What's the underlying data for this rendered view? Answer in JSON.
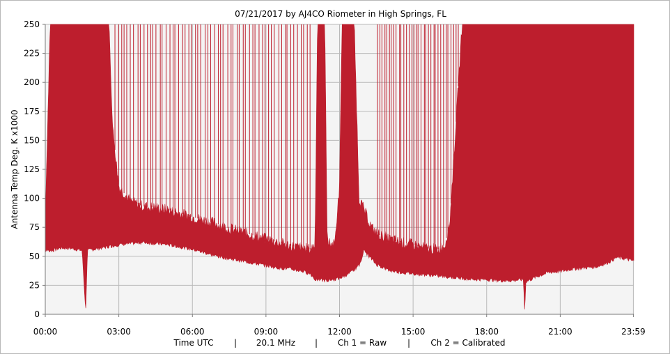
{
  "chart_data": {
    "type": "area",
    "title": "07/21/2017  by  AJ4CO Riometer  in  High Springs, FL",
    "ylabel": "Antenna Temp Deg. K x1000",
    "xlim": [
      0,
      24
    ],
    "ylim": [
      0,
      250
    ],
    "y_ticks": [
      0,
      25,
      50,
      75,
      100,
      125,
      150,
      175,
      200,
      225,
      250
    ],
    "x_ticks": [
      {
        "t": 0,
        "label": "00:00"
      },
      {
        "t": 3,
        "label": "03:00"
      },
      {
        "t": 6,
        "label": "06:00"
      },
      {
        "t": 9,
        "label": "09:00"
      },
      {
        "t": 12,
        "label": "12:00"
      },
      {
        "t": 15,
        "label": "15:00"
      },
      {
        "t": 18,
        "label": "18:00"
      },
      {
        "t": 21,
        "label": "21:00"
      },
      {
        "t": 23.983,
        "label": "23:59"
      }
    ],
    "grid": true,
    "fill_color": "#bd1e2d",
    "background_color": "#f4f4f4",
    "grid_color": "#b9b9b9",
    "series": [
      {
        "lower_envelope": [
          [
            0,
            55
          ],
          [
            0.3,
            55
          ],
          [
            0.6,
            57
          ],
          [
            1.0,
            57
          ],
          [
            1.5,
            55
          ],
          [
            1.65,
            2
          ],
          [
            1.72,
            55
          ],
          [
            2.0,
            56
          ],
          [
            2.5,
            58
          ],
          [
            3.0,
            60
          ],
          [
            3.5,
            61
          ],
          [
            4.0,
            62
          ],
          [
            4.5,
            61
          ],
          [
            5.0,
            60
          ],
          [
            5.5,
            58
          ],
          [
            6.0,
            56
          ],
          [
            6.5,
            53
          ],
          [
            7.0,
            50
          ],
          [
            7.5,
            48
          ],
          [
            8.0,
            46
          ],
          [
            8.5,
            44
          ],
          [
            9.0,
            42
          ],
          [
            9.5,
            40
          ],
          [
            10.0,
            39
          ],
          [
            10.5,
            37
          ],
          [
            10.8,
            35
          ],
          [
            11.0,
            30
          ],
          [
            11.5,
            29
          ],
          [
            12.0,
            31
          ],
          [
            12.4,
            35
          ],
          [
            12.8,
            42
          ],
          [
            13.0,
            55
          ],
          [
            13.2,
            50
          ],
          [
            13.5,
            43
          ],
          [
            14.0,
            38
          ],
          [
            14.5,
            36
          ],
          [
            15.0,
            35
          ],
          [
            15.5,
            34
          ],
          [
            16.0,
            33
          ],
          [
            16.5,
            32
          ],
          [
            17.0,
            31
          ],
          [
            17.5,
            30
          ],
          [
            18.0,
            30
          ],
          [
            18.5,
            29
          ],
          [
            19.0,
            29
          ],
          [
            19.5,
            30
          ],
          [
            19.55,
            2
          ],
          [
            19.6,
            28
          ],
          [
            20.0,
            32
          ],
          [
            20.5,
            36
          ],
          [
            21.0,
            37
          ],
          [
            21.5,
            39
          ],
          [
            22.0,
            40
          ],
          [
            22.5,
            41
          ],
          [
            23.0,
            45
          ],
          [
            23.3,
            49
          ],
          [
            23.6,
            48
          ],
          [
            23.983,
            46
          ]
        ],
        "upper_envelope": [
          [
            0,
            85
          ],
          [
            0.2,
            250
          ],
          [
            2.6,
            250
          ],
          [
            2.75,
            160
          ],
          [
            3.0,
            110
          ],
          [
            3.5,
            97
          ],
          [
            4.0,
            93
          ],
          [
            4.5,
            92
          ],
          [
            5.0,
            90
          ],
          [
            5.5,
            87
          ],
          [
            6.0,
            84
          ],
          [
            6.5,
            81
          ],
          [
            7.0,
            78
          ],
          [
            7.5,
            74
          ],
          [
            8.0,
            71
          ],
          [
            8.5,
            68
          ],
          [
            9.0,
            65
          ],
          [
            9.5,
            62
          ],
          [
            10.0,
            59
          ],
          [
            10.5,
            57
          ],
          [
            10.8,
            56
          ],
          [
            11.0,
            60
          ],
          [
            11.1,
            250
          ],
          [
            11.4,
            250
          ],
          [
            11.5,
            62
          ],
          [
            11.8,
            60
          ],
          [
            12.0,
            110
          ],
          [
            12.1,
            250
          ],
          [
            12.6,
            250
          ],
          [
            12.8,
            100
          ],
          [
            13.0,
            90
          ],
          [
            13.3,
            75
          ],
          [
            13.5,
            70
          ],
          [
            14.0,
            65
          ],
          [
            14.5,
            62
          ],
          [
            15.0,
            60
          ],
          [
            15.5,
            57
          ],
          [
            16.0,
            56
          ],
          [
            16.3,
            60
          ],
          [
            16.5,
            80
          ],
          [
            17.0,
            250
          ],
          [
            23.983,
            250
          ]
        ]
      }
    ],
    "footer": {
      "x_label": "Time UTC",
      "frequency": "20.1 MHz",
      "ch1": "Ch 1 = Raw",
      "ch2": "Ch 2 = Calibrated",
      "separator": "|"
    }
  }
}
